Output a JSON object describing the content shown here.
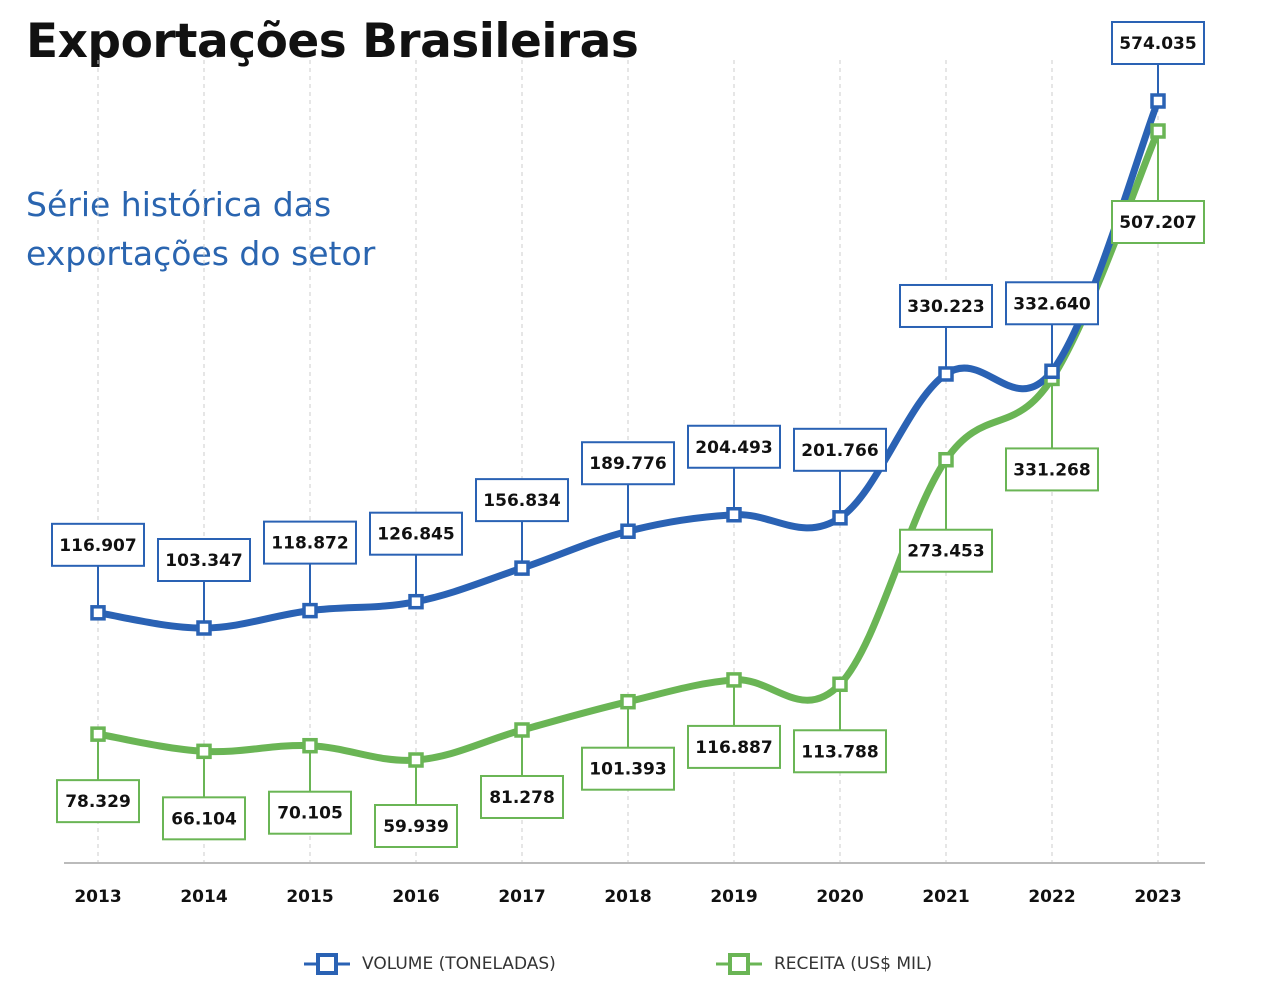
{
  "header": {
    "title": "Exportações Brasileiras",
    "subtitle_line1": "Série histórica das",
    "subtitle_line2": "exportações do setor"
  },
  "colors": {
    "volume": "#2a62b4",
    "receita": "#6ab555",
    "axis": "#bbbbbb",
    "grid": "#cccccc"
  },
  "chart_data": {
    "type": "line",
    "categories": [
      "2013",
      "2014",
      "2015",
      "2016",
      "2017",
      "2018",
      "2019",
      "2020",
      "2021",
      "2022",
      "2023"
    ],
    "series": [
      {
        "name": "VOLUME (TONELADAS)",
        "values": [
          116907,
          103347,
          118872,
          126845,
          156834,
          189776,
          204493,
          201766,
          330223,
          332640,
          574035
        ],
        "labels": [
          "116.907",
          "103.347",
          "118.872",
          "126.845",
          "156.834",
          "189.776",
          "204.493",
          "201.766",
          "330.223",
          "332.640",
          "574.035"
        ]
      },
      {
        "name": "RECEITA (US$ MIL)",
        "values": [
          78329,
          66104,
          70105,
          59939,
          81278,
          101393,
          116887,
          113788,
          273453,
          331268,
          507207
        ],
        "labels": [
          "78.329",
          "66.104",
          "70.105",
          "59.939",
          "81.278",
          "101.393",
          "116.887",
          "113.788",
          "273.453",
          "331.268",
          "507.207"
        ]
      }
    ],
    "title": "Exportações Brasileiras",
    "subtitle": "Série histórica das exportações do setor",
    "legend": "bottom-center",
    "grid": false,
    "vertical_guides": "dashed"
  }
}
